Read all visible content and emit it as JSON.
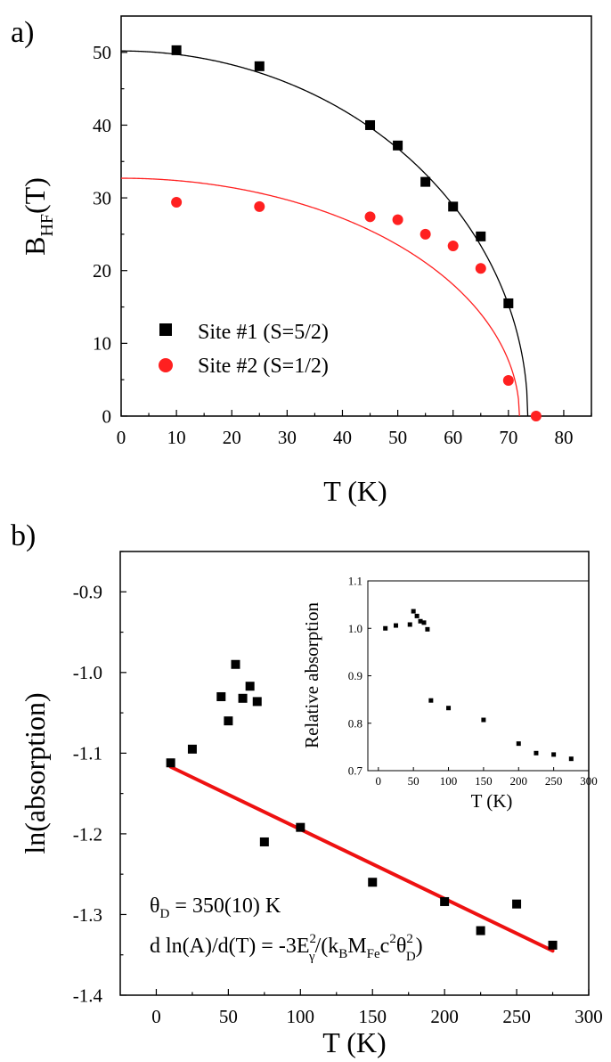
{
  "chart_data": [
    {
      "type": "scatter",
      "panel_label": "a)",
      "xlabel": "T (K)",
      "ylabel_main": "B",
      "ylabel_sub": "HF",
      "ylabel_tail": "(T)",
      "xlim": [
        0,
        85
      ],
      "ylim": [
        0,
        55
      ],
      "xticks": [
        0,
        10,
        20,
        30,
        40,
        50,
        60,
        70,
        80
      ],
      "yticks": [
        0,
        10,
        20,
        30,
        40,
        50
      ],
      "legend_position": "bottom-left",
      "series": [
        {
          "name": "Site #1 (S=5/2)",
          "marker": "square",
          "color": "#000000",
          "x": [
            10,
            25,
            45,
            50,
            55,
            60,
            65,
            70
          ],
          "y": [
            50.3,
            48.1,
            40.0,
            37.2,
            32.2,
            28.8,
            24.7,
            15.5
          ]
        },
        {
          "name": "Site #2 (S=1/2)",
          "marker": "circle",
          "color": "#ff2020",
          "x": [
            10,
            25,
            45,
            50,
            55,
            60,
            65,
            70,
            75
          ],
          "y": [
            29.4,
            28.8,
            27.4,
            27.0,
            25.0,
            23.4,
            20.3,
            4.9,
            0.0
          ]
        }
      ],
      "fits": [
        {
          "color": "#000000",
          "B0": 50.2,
          "Tc": 73.5
        },
        {
          "color": "#ff2020",
          "B0": 32.7,
          "Tc": 72.0
        }
      ]
    },
    {
      "type": "scatter",
      "panel_label": "b)",
      "xlabel": "T (K)",
      "ylabel": "ln(absorption)",
      "xlim": [
        -25,
        300
      ],
      "ylim": [
        -1.4,
        -0.85
      ],
      "xticks": [
        0,
        50,
        100,
        150,
        200,
        250,
        300
      ],
      "yticks": [
        -1.4,
        -1.3,
        -1.2,
        -1.1,
        -1.0,
        -0.9
      ],
      "ytick_labels": [
        "-1.4",
        "-1.3",
        "-1.2",
        "-1.1",
        "-1.0",
        "-0.9"
      ],
      "series": [
        {
          "marker": "square",
          "color": "#000000",
          "x": [
            10,
            25,
            45,
            50,
            55,
            60,
            65,
            70,
            75,
            100,
            150,
            200,
            225,
            250,
            275
          ],
          "y": [
            -1.112,
            -1.095,
            -1.03,
            -1.06,
            -0.99,
            -1.032,
            -1.017,
            -1.036,
            -1.21,
            -1.192,
            -1.26,
            -1.284,
            -1.32,
            -1.287,
            -1.338
          ]
        }
      ],
      "fit_line": {
        "color": "#ee1111",
        "x": [
          10,
          275
        ],
        "y": [
          -1.117,
          -1.345
        ]
      },
      "annotation_line1": "θ",
      "annotation_line1_sub": "D",
      "annotation_line1_tail": " = 350(10) K",
      "annotation_line2_parts": {
        "a": "d ln(A)/d(T) = -3E",
        "sup1": "2",
        "sub1": "γ",
        "b": "/(k",
        "sub2": "B",
        "c": "M",
        "sub3": "Fe",
        "d": "c",
        "sup2": "2",
        "e": "θ",
        "sup3": "2",
        "sub4": "D",
        "f": ")"
      },
      "inset": {
        "type": "scatter",
        "xlabel": "T (K)",
        "ylabel": "Relative absorption",
        "xlim": [
          -15,
          300
        ],
        "ylim": [
          0.7,
          1.1
        ],
        "xticks": [
          0,
          50,
          100,
          150,
          200,
          250,
          300
        ],
        "yticks": [
          0.7,
          0.8,
          0.9,
          1.0,
          1.1
        ],
        "ytick_labels": [
          "0.7",
          "0.8",
          "0.9",
          "1.0",
          "1.1"
        ],
        "x": [
          10,
          25,
          45,
          50,
          55,
          60,
          65,
          70,
          75,
          100,
          150,
          200,
          225,
          250,
          275
        ],
        "y": [
          1.0,
          1.006,
          1.008,
          1.036,
          1.026,
          1.015,
          1.012,
          0.998,
          0.848,
          0.832,
          0.807,
          0.757,
          0.737,
          0.734,
          0.725
        ]
      }
    }
  ]
}
